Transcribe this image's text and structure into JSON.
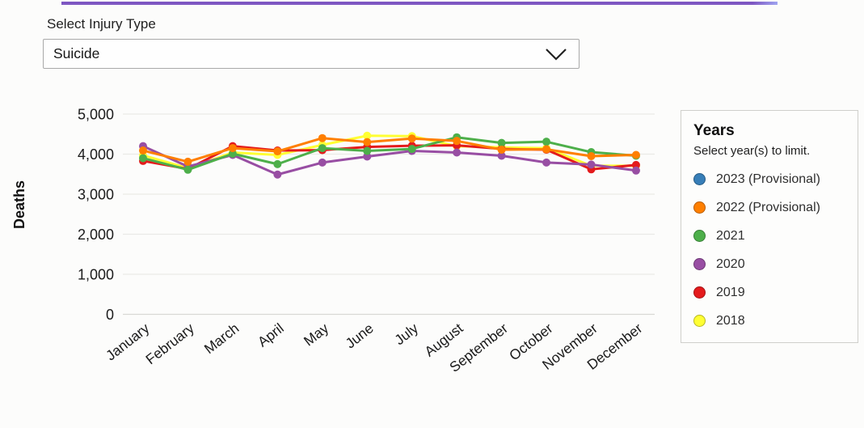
{
  "page": {
    "top_bar_color": "#7e57c2"
  },
  "injury_filter": {
    "label": "Select Injury Type",
    "selected_value": "Suicide"
  },
  "legend": {
    "title": "Years",
    "subtitle": "Select year(s) to limit.",
    "items": [
      {
        "label": "2023 (Provisional)",
        "color": "#377eb8"
      },
      {
        "label": "2022 (Provisional)",
        "color": "#ff7f00"
      },
      {
        "label": "2021",
        "color": "#4daf4a"
      },
      {
        "label": "2020",
        "color": "#984ea3"
      },
      {
        "label": "2019",
        "color": "#e41a1c"
      },
      {
        "label": "2018",
        "color": "#ffff33"
      }
    ]
  },
  "chart_data": {
    "type": "line",
    "title": "",
    "xlabel": "",
    "ylabel": "Deaths",
    "ylim": [
      0,
      5000
    ],
    "grid": true,
    "legend_position": "right",
    "yticks": [
      {
        "value": 0,
        "label": "0"
      },
      {
        "value": 1000,
        "label": "1,000"
      },
      {
        "value": 2000,
        "label": "2,000"
      },
      {
        "value": 3000,
        "label": "3,000"
      },
      {
        "value": 4000,
        "label": "4,000"
      },
      {
        "value": 5000,
        "label": "5,000"
      }
    ],
    "categories": [
      "January",
      "February",
      "March",
      "April",
      "May",
      "June",
      "July",
      "August",
      "September",
      "October",
      "November",
      "December"
    ],
    "series": [
      {
        "name": "2023 (Provisional)",
        "color": "#377eb8",
        "values": []
      },
      {
        "name": "2022 (Provisional)",
        "color": "#ff7f00",
        "values": [
          4090,
          3810,
          4150,
          4070,
          4400,
          4300,
          4390,
          4330,
          4110,
          4120,
          3950,
          3980
        ]
      },
      {
        "name": "2021",
        "color": "#4daf4a",
        "values": [
          3900,
          3610,
          4010,
          3750,
          4150,
          4080,
          4130,
          4420,
          4280,
          4310,
          4050,
          3960
        ]
      },
      {
        "name": "2020",
        "color": "#984ea3",
        "values": [
          4200,
          3690,
          3980,
          3490,
          3790,
          3940,
          4080,
          4040,
          3960,
          3790,
          3740,
          3590
        ]
      },
      {
        "name": "2019",
        "color": "#e41a1c",
        "values": [
          3830,
          3630,
          4200,
          4090,
          4100,
          4180,
          4210,
          4220,
          4130,
          4110,
          3620,
          3730
        ]
      },
      {
        "name": "2018",
        "color": "#ffff33",
        "values": [
          3970,
          3650,
          4040,
          3980,
          4230,
          4460,
          4450,
          4200,
          4170,
          4150,
          3710,
          3710
        ]
      }
    ]
  }
}
